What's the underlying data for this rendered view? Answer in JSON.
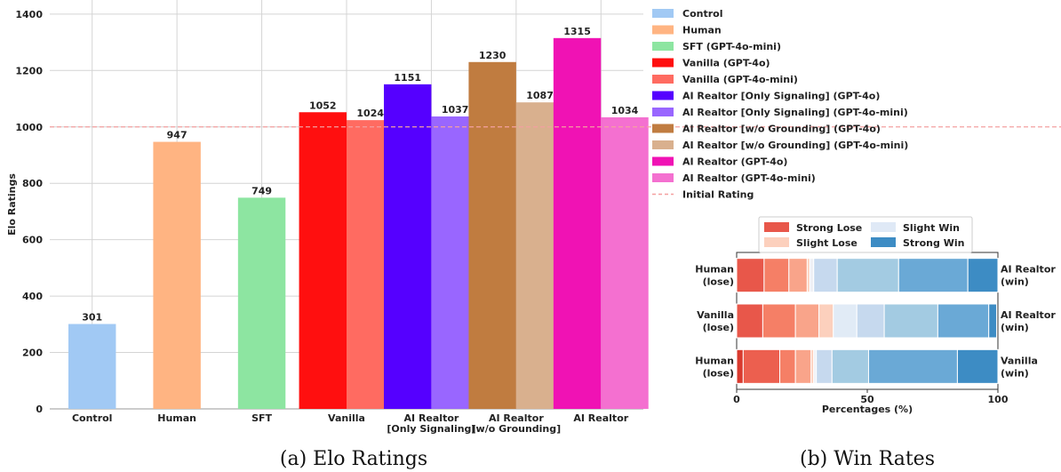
{
  "chart_data": [
    {
      "type": "bar",
      "ylabel": "Elo Ratings",
      "ylim": [
        0,
        1450
      ],
      "yticks": [
        0,
        200,
        400,
        600,
        800,
        1000,
        1200,
        1400
      ],
      "grid": true,
      "initial_rating": 1000,
      "groups": [
        {
          "label": "Control",
          "bars": [
            {
              "series": "Control",
              "value": 301,
              "color": "#a1c9f4"
            }
          ]
        },
        {
          "label": "Human",
          "bars": [
            {
              "series": "Human",
              "value": 947,
              "color": "#ffb482"
            }
          ]
        },
        {
          "label": "SFT",
          "bars": [
            {
              "series": "SFT (GPT-4o-mini)",
              "value": 749,
              "color": "#8de5a1"
            }
          ]
        },
        {
          "label": "Vanilla",
          "bars": [
            {
              "series": "Vanilla (GPT-4o)",
              "value": 1052,
              "color": "#ff0f0f"
            },
            {
              "series": "Vanilla (GPT-4o-mini)",
              "value": 1024,
              "color": "#ff6b61"
            }
          ]
        },
        {
          "label": "AI Realtor\n[Only Signaling]",
          "bars": [
            {
              "series": "AI Realtor [Only Signaling] (GPT-4o)",
              "value": 1151,
              "color": "#5500ff"
            },
            {
              "series": "AI Realtor [Only Signaling] (GPT-4o-mini)",
              "value": 1037,
              "color": "#9966ff"
            }
          ]
        },
        {
          "label": "AI Realtor\n[w/o Grounding]",
          "bars": [
            {
              "series": "AI Realtor [w/o Grounding] (GPT-4o)",
              "value": 1230,
              "color": "#c07c40"
            },
            {
              "series": "AI Realtor [w/o Grounding] (GPT-4o-mini)",
              "value": 1087,
              "color": "#d9b08e"
            }
          ]
        },
        {
          "label": "AI Realtor",
          "bars": [
            {
              "series": "AI Realtor (GPT-4o)",
              "value": 1315,
              "color": "#f012b4"
            },
            {
              "series": "AI Realtor (GPT-4o-mini)",
              "value": 1034,
              "color": "#f470d0"
            }
          ]
        }
      ],
      "legend": {
        "position": "right",
        "entries": [
          {
            "label": "Control",
            "color": "#a1c9f4",
            "kind": "patch"
          },
          {
            "label": "Human",
            "color": "#ffb482",
            "kind": "patch"
          },
          {
            "label": "SFT (GPT-4o-mini)",
            "color": "#8de5a1",
            "kind": "patch"
          },
          {
            "label": "Vanilla (GPT-4o)",
            "color": "#ff0f0f",
            "kind": "patch"
          },
          {
            "label": "Vanilla (GPT-4o-mini)",
            "color": "#ff6b61",
            "kind": "patch"
          },
          {
            "label": "AI Realtor [Only Signaling] (GPT-4o)",
            "color": "#5500ff",
            "kind": "patch"
          },
          {
            "label": "AI Realtor [Only Signaling] (GPT-4o-mini)",
            "color": "#9966ff",
            "kind": "patch"
          },
          {
            "label": "AI Realtor [w/o Grounding] (GPT-4o)",
            "color": "#c07c40",
            "kind": "patch"
          },
          {
            "label": "AI Realtor [w/o Grounding] (GPT-4o-mini)",
            "color": "#d9b08e",
            "kind": "patch"
          },
          {
            "label": "AI Realtor (GPT-4o)",
            "color": "#f012b4",
            "kind": "patch"
          },
          {
            "label": "AI Realtor (GPT-4o-mini)",
            "color": "#f470d0",
            "kind": "patch"
          },
          {
            "label": "Initial Rating",
            "color": "#f4a0a0",
            "kind": "dashed-line"
          }
        ]
      },
      "caption": "(a) Elo Ratings"
    },
    {
      "type": "bar",
      "orientation": "horizontal-stacked",
      "xlabel": "Percentages (%)",
      "xlim": [
        0,
        100
      ],
      "xticks": [
        0,
        50,
        100
      ],
      "rows": [
        {
          "left_label": "Human\n(lose)",
          "right_label": "AI Realtor\n(win)",
          "segments": [
            10.5,
            9.5,
            7,
            1,
            1.5,
            9,
            23.5,
            26.5,
            11.5
          ]
        },
        {
          "left_label": "Vanilla\n(lose)",
          "right_label": "AI Realtor\n(win)",
          "segments": [
            10,
            12.5,
            9,
            5.5,
            9,
            10.5,
            20.5,
            19.5,
            3
          ]
        },
        {
          "left_label": "Human\n(lose)",
          "right_label": "Vanilla\n(win)",
          "segments": [
            2.5,
            14,
            6,
            6,
            1,
            1,
            6,
            14,
            34,
            15.5
          ]
        }
      ],
      "segment_colors": [
        [
          "#e8574a",
          "#f57f66",
          "#f9a48a",
          "#fcd0bd",
          "#eef0f5",
          "#c6d9ee",
          "#a3cbe2",
          "#6aa9d6",
          "#3d8cc4"
        ],
        [
          "#e8574a",
          "#f57f66",
          "#f9a48a",
          "#fcd0bd",
          "#e1ebf6",
          "#c6d9ee",
          "#a3cbe2",
          "#6aa9d6",
          "#3d8cc4"
        ],
        [
          "#d93a2e",
          "#ec5f4f",
          "#f57f66",
          "#f9a48a",
          "#fcd0bd",
          "#eef0f5",
          "#c6d9ee",
          "#a3cbe2",
          "#6aa9d6",
          "#3d8cc4"
        ]
      ],
      "legend": {
        "position": "top",
        "entries": [
          {
            "label": "Strong Lose",
            "color": "#e8574a"
          },
          {
            "label": "Slight Lose",
            "color": "#fcd0bd"
          },
          {
            "label": "Slight Win",
            "color": "#dfe9f6"
          },
          {
            "label": "Strong Win",
            "color": "#3d8cc4"
          }
        ]
      },
      "caption": "(b) Win Rates"
    }
  ]
}
